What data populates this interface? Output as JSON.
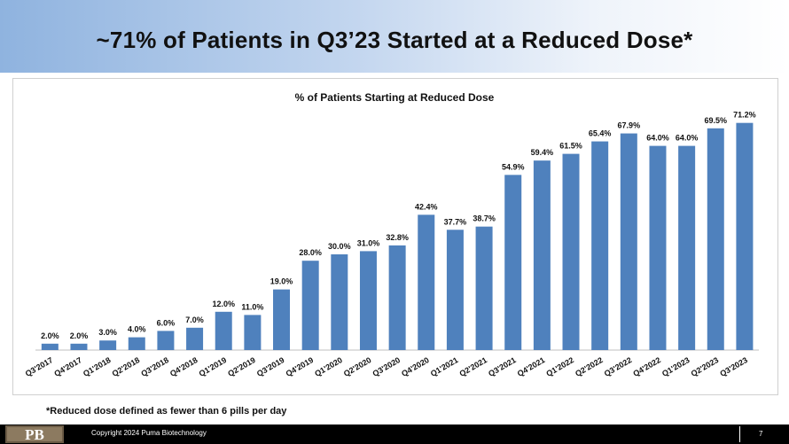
{
  "slide": {
    "title": "~71% of Patients in Q3’23 Started at a Reduced Dose*",
    "footnote": "*Reduced dose defined as fewer than 6 pills per day",
    "copyright": "Copyright  2024 Puma  Biotechnology",
    "page_number": "7",
    "logo_text": "PB",
    "bar_color": "#4f81bd"
  },
  "chart_data": {
    "type": "bar",
    "title": "% of Patients Starting at Reduced Dose",
    "xlabel": "",
    "ylabel": "",
    "ylim": [
      0,
      80
    ],
    "grid": false,
    "categories": [
      "Q3'2017",
      "Q4'2017",
      "Q1'2018",
      "Q2'2018",
      "Q3'2018",
      "Q4'2018",
      "Q1'2019",
      "Q2'2019",
      "Q3'2019",
      "Q4'2019",
      "Q1'2020",
      "Q2'2020",
      "Q3'2020",
      "Q4'2020",
      "Q1'2021",
      "Q2'2021",
      "Q3'2021",
      "Q4'2021",
      "Q1'2022",
      "Q2'2022",
      "Q3'2022",
      "Q4'2022",
      "Q1'2023",
      "Q2'2023",
      "Q3'2023"
    ],
    "values": [
      2.0,
      2.0,
      3.0,
      4.0,
      6.0,
      7.0,
      12.0,
      11.0,
      19.0,
      28.0,
      30.0,
      31.0,
      32.8,
      42.4,
      37.7,
      38.7,
      54.9,
      59.4,
      61.5,
      65.4,
      67.9,
      64.0,
      64.0,
      69.5,
      71.2
    ],
    "data_labels": [
      "2.0%",
      "2.0%",
      "3.0%",
      "4.0%",
      "6.0%",
      "7.0%",
      "12.0%",
      "11.0%",
      "19.0%",
      "28.0%",
      "30.0%",
      "31.0%",
      "32.8%",
      "42.4%",
      "37.7%",
      "38.7%",
      "54.9%",
      "59.4%",
      "61.5%",
      "65.4%",
      "67.9%",
      "64.0%",
      "64.0%",
      "69.5%",
      "71.2%"
    ]
  }
}
